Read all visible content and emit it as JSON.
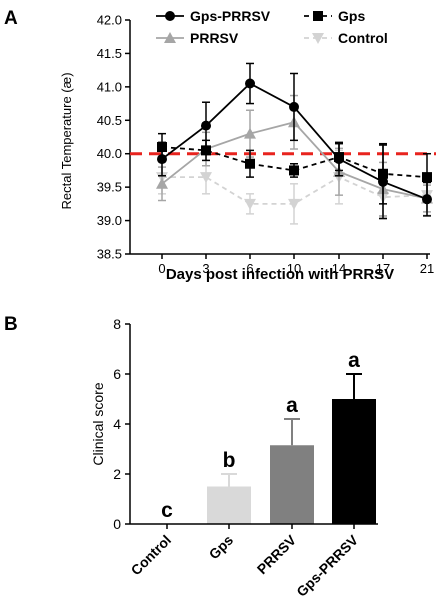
{
  "panel_a": {
    "letter": "A",
    "chart_data": {
      "type": "line",
      "x": [
        0,
        3,
        6,
        10,
        14,
        17,
        21
      ],
      "xlabel": "Days post infection with PRRSV",
      "ylabel": "Rectal Temperature (æ)",
      "ylim": [
        38.5,
        42.0
      ],
      "yticks": [
        "38.5",
        "39.0",
        "39.5",
        "40.0",
        "40.5",
        "41.0",
        "41.5",
        "42.0"
      ],
      "xticks": [
        "0",
        "3",
        "6",
        "10",
        "14",
        "17",
        "21"
      ],
      "reference_line": {
        "y": 40.0,
        "color": "#e8231e",
        "style": "dashed"
      },
      "legend_position": "top",
      "series": [
        {
          "name": "Gps-PRRSV",
          "marker": "circle",
          "line": "solid",
          "color": "#000000",
          "values": [
            39.92,
            40.42,
            41.05,
            40.7,
            39.92,
            39.58,
            39.32
          ],
          "errors": [
            0.25,
            0.35,
            0.3,
            0.5,
            0.25,
            0.55,
            0.25
          ]
        },
        {
          "name": "Gps",
          "marker": "square",
          "line": "dashed",
          "color": "#000000",
          "values": [
            40.1,
            40.05,
            39.85,
            39.75,
            39.95,
            39.7,
            39.65
          ],
          "errors": [
            0.2,
            0.15,
            0.2,
            0.1,
            0.2,
            0.45,
            0.35
          ]
        },
        {
          "name": "PRRSV",
          "marker": "triangle-up",
          "line": "solid",
          "color": "#a6a6a6",
          "values": [
            39.55,
            40.07,
            40.3,
            40.47,
            39.73,
            39.47,
            39.33
          ],
          "errors": [
            0.25,
            0.25,
            0.35,
            0.4,
            0.35,
            0.4,
            0.2
          ]
        },
        {
          "name": "Control",
          "marker": "triangle-down",
          "line": "dashed",
          "color": "#d3d3d3",
          "values": [
            39.65,
            39.65,
            39.25,
            39.25,
            39.65,
            39.35,
            39.38
          ],
          "errors": [
            0.25,
            0.25,
            0.15,
            0.3,
            0.4,
            0.3,
            0.3
          ]
        }
      ]
    }
  },
  "panel_b": {
    "letter": "B",
    "chart_data": {
      "type": "bar",
      "categories": [
        "Control",
        "Gps",
        "PRRSV",
        "Gps-PRRSV"
      ],
      "values": [
        0,
        1.5,
        3.15,
        5.0
      ],
      "errors": [
        0,
        0.5,
        1.05,
        1.0
      ],
      "significance_letters": [
        "c",
        "b",
        "a",
        "a"
      ],
      "bar_colors": [
        "#ffffff",
        "#d9d9d9",
        "#808080",
        "#000000"
      ],
      "ylabel": "Clinical score",
      "xlabel": "",
      "ylim": [
        0,
        8
      ],
      "yticks": [
        "0",
        "2",
        "4",
        "6",
        "8"
      ]
    }
  }
}
